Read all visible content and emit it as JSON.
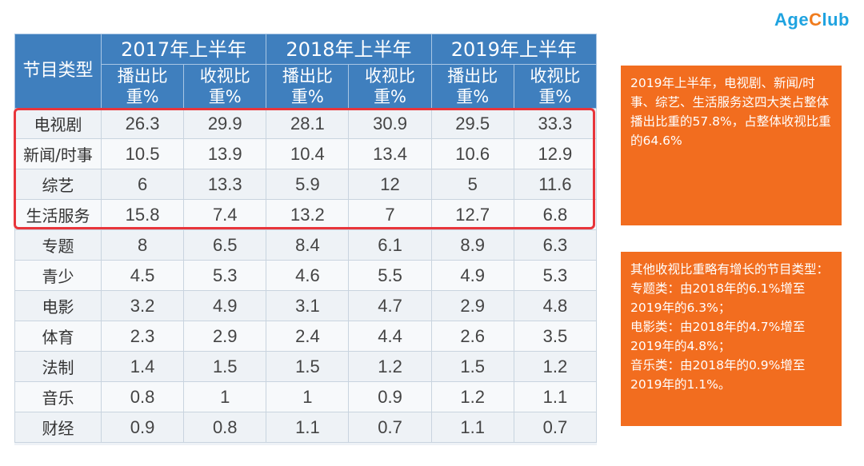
{
  "logo": {
    "part1": "Age",
    "part2": "C",
    "part3": "lub"
  },
  "table": {
    "header_category": "节目类型",
    "years": [
      "2017年上半年",
      "2018年上半年",
      "2019年上半年"
    ],
    "sub_headers": [
      "播出比重%",
      "收视比重%",
      "播出比重%",
      "收视比重%",
      "播出比重%",
      "收视比重%"
    ],
    "rows": [
      [
        "电视剧",
        "26.3",
        "29.9",
        "28.1",
        "30.9",
        "29.5",
        "33.3"
      ],
      [
        "新闻/时事",
        "10.5",
        "13.9",
        "10.4",
        "13.4",
        "10.6",
        "12.9"
      ],
      [
        "综艺",
        "6",
        "13.3",
        "5.9",
        "12",
        "5",
        "11.6"
      ],
      [
        "生活服务",
        "15.8",
        "7.4",
        "13.2",
        "7",
        "12.7",
        "6.8"
      ],
      [
        "专题",
        "8",
        "6.5",
        "8.4",
        "6.1",
        "8.9",
        "6.3"
      ],
      [
        "青少",
        "4.5",
        "5.3",
        "4.6",
        "5.5",
        "4.9",
        "5.3"
      ],
      [
        "电影",
        "3.2",
        "4.9",
        "3.1",
        "4.7",
        "2.9",
        "4.8"
      ],
      [
        "体育",
        "2.3",
        "2.9",
        "2.4",
        "4.4",
        "2.6",
        "3.5"
      ],
      [
        "法制",
        "1.4",
        "1.5",
        "1.5",
        "1.2",
        "1.5",
        "1.2"
      ],
      [
        "音乐",
        "0.8",
        "1",
        "1",
        "0.9",
        "1.2",
        "1.1"
      ],
      [
        "财经",
        "0.9",
        "0.8",
        "1.1",
        "0.7",
        "1.1",
        "0.7"
      ]
    ]
  },
  "notes": {
    "note1": "2019年上半年，电视剧、新闻/时事、综艺、生活服务这四大类占整体播出比重的57.8%，占整体收视比重的64.6%",
    "note2_lines": [
      "其他收视比重略有增长的节目类型：",
      "专题类：由2018年的6.1%增至2019年的6.3%；",
      "电影类：由2018年的4.7%增至2019年的4.8%；",
      "音乐类：由2018年的0.9%增至2019年的1.1%。"
    ]
  }
}
